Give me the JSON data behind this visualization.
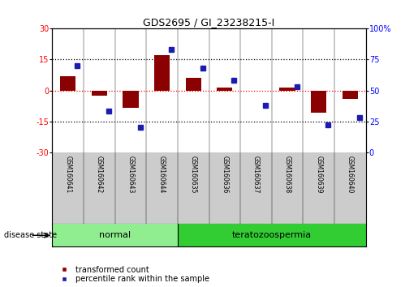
{
  "title": "GDS2695 / GI_23238215-I",
  "samples": [
    "GSM160641",
    "GSM160642",
    "GSM160643",
    "GSM160644",
    "GSM160635",
    "GSM160636",
    "GSM160637",
    "GSM160638",
    "GSM160639",
    "GSM160640"
  ],
  "groups": [
    {
      "label": "normal",
      "color": "#90EE90",
      "indices": [
        0,
        1,
        2,
        3
      ]
    },
    {
      "label": "teratozoospermia",
      "color": "#32CD32",
      "indices": [
        4,
        5,
        6,
        7,
        8,
        9
      ]
    }
  ],
  "red_values": [
    7.0,
    -2.5,
    -8.5,
    17.0,
    6.0,
    1.5,
    0.0,
    1.5,
    -11.0,
    -4.0
  ],
  "blue_values_pct": [
    70,
    33,
    20,
    83,
    68,
    58,
    38,
    53,
    22,
    28
  ],
  "ylim_left": [
    -30,
    30
  ],
  "ylim_right": [
    0,
    100
  ],
  "yticks_left": [
    -30,
    -15,
    0,
    15,
    30
  ],
  "yticks_right": [
    0,
    25,
    50,
    75,
    100
  ],
  "hlines_black": [
    15,
    -15
  ],
  "hline_red": 0,
  "red_color": "#8B0000",
  "blue_color": "#1C1CB0",
  "legend_red": "transformed count",
  "legend_blue": "percentile rank within the sample",
  "disease_state_label": "disease state",
  "bar_width": 0.5,
  "background_color": "#ffffff",
  "plot_bg": "#ffffff",
  "label_bg": "#cccccc",
  "group_normal_color": "#90EE90",
  "group_terato_color": "#32CD32"
}
